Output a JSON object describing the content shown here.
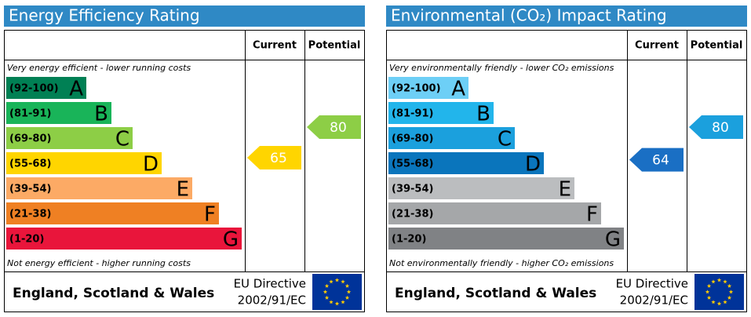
{
  "panels": [
    {
      "title": "Energy Efficiency Rating",
      "columns": [
        "Current",
        "Potential"
      ],
      "top_note": "Very energy efficient - lower running costs",
      "bottom_note": "Not energy efficient - higher running costs",
      "bands": [
        {
          "range": "(92-100)",
          "letter": "A",
          "color": "#008054"
        },
        {
          "range": "(81-91)",
          "letter": "B",
          "color": "#19b459"
        },
        {
          "range": "(69-80)",
          "letter": "C",
          "color": "#8dce46"
        },
        {
          "range": "(55-68)",
          "letter": "D",
          "color": "#ffd500"
        },
        {
          "range": "(39-54)",
          "letter": "E",
          "color": "#fcaa65"
        },
        {
          "range": "(21-38)",
          "letter": "F",
          "color": "#ef8023"
        },
        {
          "range": "(1-20)",
          "letter": "G",
          "color": "#e9153b"
        }
      ],
      "current": 65,
      "current_color": "#ffd500",
      "potential": 80,
      "potential_color": "#8dce46",
      "footer": {
        "region": "England, Scotland & Wales",
        "directive": "EU Directive",
        "directive_number": "2002/91/EC"
      }
    },
    {
      "title": "Environmental (CO₂) Impact Rating",
      "columns": [
        "Current",
        "Potential"
      ],
      "top_note": "Very environmentally friendly - lower CO₂ emissions",
      "bottom_note": "Not environmentally friendly - higher CO₂ emissions",
      "bands": [
        {
          "range": "(92-100)",
          "letter": "A",
          "color": "#6dcff6"
        },
        {
          "range": "(81-91)",
          "letter": "B",
          "color": "#22b5eb"
        },
        {
          "range": "(69-80)",
          "letter": "C",
          "color": "#1ba0dd"
        },
        {
          "range": "(55-68)",
          "letter": "D",
          "color": "#0a75bc"
        },
        {
          "range": "(39-54)",
          "letter": "E",
          "color": "#bbbdbf"
        },
        {
          "range": "(21-38)",
          "letter": "F",
          "color": "#a5a7a9"
        },
        {
          "range": "(1-20)",
          "letter": "G",
          "color": "#808285"
        }
      ],
      "current": 64,
      "current_color": "#1a6fc4",
      "potential": 80,
      "potential_color": "#1ba0dd",
      "footer": {
        "region": "England, Scotland & Wales",
        "directive": "EU Directive",
        "directive_number": "2002/91/EC"
      }
    }
  ]
}
